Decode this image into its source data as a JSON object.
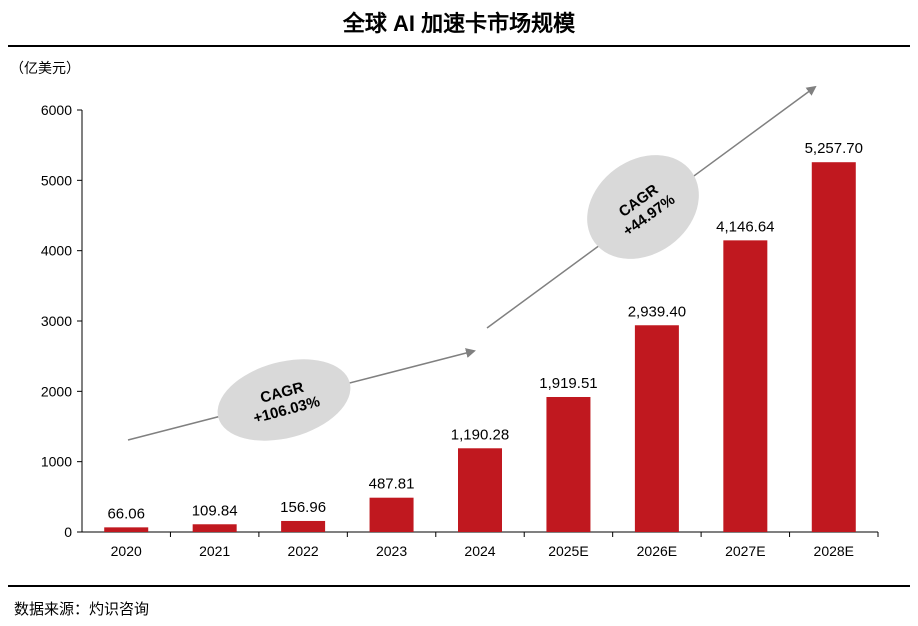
{
  "title": "全球 AI 加速卡市场规模",
  "unit": "（亿美元）",
  "source": "数据来源：灼识咨询",
  "colors": {
    "bar": "#C0181F",
    "arrow": "#808080",
    "ellipse": "#D9D9D9"
  },
  "chart_data": {
    "type": "bar",
    "title": "全球 AI 加速卡市场规模",
    "ylabel": "（亿美元）",
    "categories": [
      "2020",
      "2021",
      "2022",
      "2023",
      "2024",
      "2025E",
      "2026E",
      "2027E",
      "2028E"
    ],
    "values": [
      66.06,
      109.84,
      156.96,
      487.81,
      1190.28,
      1919.51,
      2939.4,
      4146.64,
      5257.7
    ],
    "data_labels": [
      "66.06",
      "109.84",
      "156.96",
      "487.81",
      "1,190.28",
      "1,919.51",
      "2,939.40",
      "4,146.64",
      "5,257.70"
    ],
    "ylim": [
      0,
      6000
    ],
    "yticks": [
      0,
      1000,
      2000,
      3000,
      4000,
      5000,
      6000
    ],
    "grid": false,
    "annotations": [
      {
        "line1": "CAGR",
        "line2": "+106.03%",
        "from": "2020",
        "to": "2024"
      },
      {
        "line1": "CAGR",
        "line2": "+44.97%",
        "from": "2024",
        "to": "2028E"
      }
    ]
  }
}
